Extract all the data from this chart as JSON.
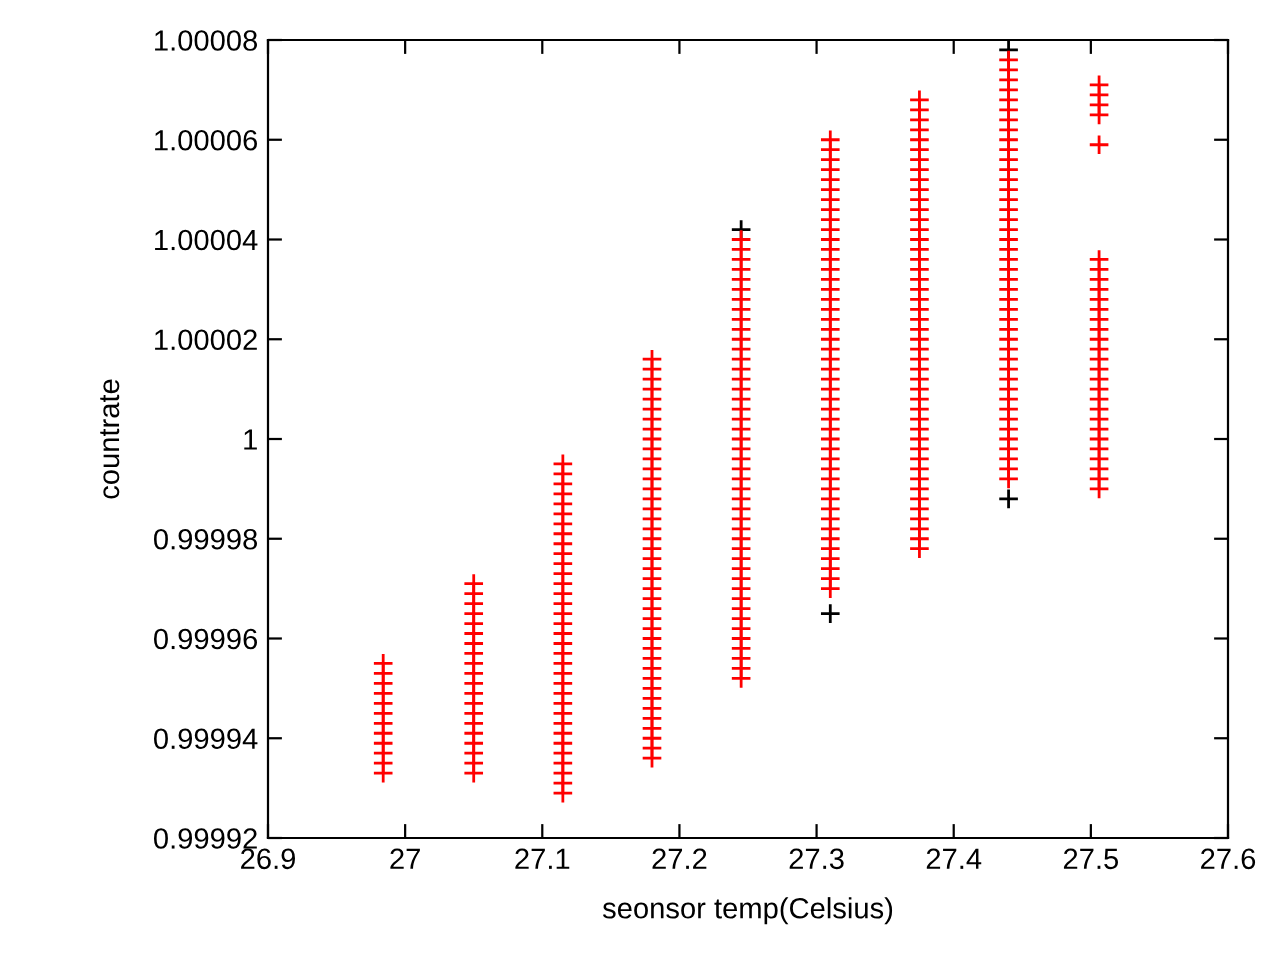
{
  "chart_data": {
    "type": "scatter",
    "xlabel": "seonsor temp(Celsius)",
    "ylabel": "countrate",
    "marker": "cross",
    "grid": false,
    "legend": false,
    "xlim": [
      26.9,
      27.6
    ],
    "xticks": [
      26.9,
      27,
      27.1,
      27.2,
      27.3,
      27.4,
      27.5,
      27.6
    ],
    "ylim": [
      0.99992,
      1.00008
    ],
    "yticks": [
      0.99992,
      0.99994,
      0.99996,
      0.99998,
      1,
      1.00002,
      1.00004,
      1.00006,
      1.00008
    ],
    "series": [
      {
        "color": "#000000",
        "x": [
          27.245,
          27.31,
          27.44,
          27.44
        ],
        "values": [
          1.000042,
          0.999965,
          1.000078,
          0.999988
        ]
      },
      {
        "color": "#ff0000",
        "x": [
          26.984,
          26.984,
          26.984,
          26.984,
          26.984,
          26.984,
          26.984,
          26.984,
          26.984,
          26.984,
          26.984,
          26.984
        ],
        "values": [
          0.999933,
          0.999935,
          0.999937,
          0.999939,
          0.999941,
          0.999943,
          0.999945,
          0.999947,
          0.999949,
          0.999951,
          0.999953,
          0.999955
        ]
      },
      {
        "color": "#ff0000",
        "x": [
          27.05,
          27.05,
          27.05,
          27.05,
          27.05,
          27.05,
          27.05,
          27.05,
          27.05,
          27.05,
          27.05,
          27.05,
          27.05,
          27.05,
          27.05,
          27.05,
          27.05,
          27.05,
          27.05,
          27.05
        ],
        "values": [
          0.999933,
          0.999935,
          0.999937,
          0.999939,
          0.999941,
          0.999943,
          0.999945,
          0.999947,
          0.999949,
          0.999951,
          0.999953,
          0.999955,
          0.999957,
          0.999959,
          0.999961,
          0.999963,
          0.999965,
          0.999967,
          0.999969,
          0.999971
        ]
      },
      {
        "color": "#ff0000",
        "x": [
          27.115,
          27.115,
          27.115,
          27.115,
          27.115,
          27.115,
          27.115,
          27.115,
          27.115,
          27.115,
          27.115,
          27.115,
          27.115,
          27.115,
          27.115,
          27.115,
          27.115,
          27.115,
          27.115,
          27.115,
          27.115,
          27.115,
          27.115,
          27.115,
          27.115,
          27.115,
          27.115,
          27.115,
          27.115,
          27.115,
          27.115,
          27.115,
          27.115,
          27.115
        ],
        "values": [
          0.999929,
          0.999931,
          0.999933,
          0.999935,
          0.999937,
          0.999939,
          0.999941,
          0.999943,
          0.999945,
          0.999947,
          0.999949,
          0.999951,
          0.999953,
          0.999955,
          0.999957,
          0.999959,
          0.999961,
          0.999963,
          0.999965,
          0.999967,
          0.999969,
          0.999971,
          0.999973,
          0.999975,
          0.999977,
          0.999979,
          0.999981,
          0.999983,
          0.999985,
          0.999987,
          0.999989,
          0.999991,
          0.999993,
          0.999995
        ]
      },
      {
        "color": "#ff0000",
        "x": [
          27.18,
          27.18,
          27.18,
          27.18,
          27.18,
          27.18,
          27.18,
          27.18,
          27.18,
          27.18,
          27.18,
          27.18,
          27.18,
          27.18,
          27.18,
          27.18,
          27.18,
          27.18,
          27.18,
          27.18,
          27.18,
          27.18,
          27.18,
          27.18,
          27.18,
          27.18,
          27.18,
          27.18,
          27.18,
          27.18,
          27.18,
          27.18,
          27.18,
          27.18,
          27.18,
          27.18,
          27.18,
          27.18,
          27.18,
          27.18,
          27.18
        ],
        "values": [
          0.999936,
          0.999938,
          0.99994,
          0.999942,
          0.999944,
          0.999946,
          0.999948,
          0.99995,
          0.999952,
          0.999954,
          0.999956,
          0.999958,
          0.99996,
          0.999962,
          0.999964,
          0.999966,
          0.999968,
          0.99997,
          0.999972,
          0.999974,
          0.999976,
          0.999978,
          0.99998,
          0.999982,
          0.999984,
          0.999986,
          0.999988,
          0.99999,
          0.999992,
          0.999994,
          0.999996,
          0.999998,
          1.0,
          1.000002,
          1.000004,
          1.000006,
          1.000008,
          1.00001,
          1.000012,
          1.000014,
          1.000016
        ]
      },
      {
        "color": "#ff0000",
        "x": [
          27.245,
          27.245,
          27.245,
          27.245,
          27.245,
          27.245,
          27.245,
          27.245,
          27.245,
          27.245,
          27.245,
          27.245,
          27.245,
          27.245,
          27.245,
          27.245,
          27.245,
          27.245,
          27.245,
          27.245,
          27.245,
          27.245,
          27.245,
          27.245,
          27.245,
          27.245,
          27.245,
          27.245,
          27.245,
          27.245,
          27.245,
          27.245,
          27.245,
          27.245,
          27.245,
          27.245,
          27.245,
          27.245,
          27.245,
          27.245,
          27.245,
          27.245,
          27.245,
          27.245,
          27.245
        ],
        "values": [
          0.999952,
          0.999954,
          0.999956,
          0.999958,
          0.99996,
          0.999962,
          0.999964,
          0.999966,
          0.999968,
          0.99997,
          0.999972,
          0.999974,
          0.999976,
          0.999978,
          0.99998,
          0.999982,
          0.999984,
          0.999986,
          0.999988,
          0.99999,
          0.999992,
          0.999994,
          0.999996,
          0.999998,
          1.0,
          1.000002,
          1.000004,
          1.000006,
          1.000008,
          1.00001,
          1.000012,
          1.000014,
          1.000016,
          1.000018,
          1.00002,
          1.000022,
          1.000024,
          1.000026,
          1.000028,
          1.00003,
          1.000032,
          1.000034,
          1.000036,
          1.000038,
          1.00004
        ]
      },
      {
        "color": "#ff0000",
        "x": [
          27.31,
          27.31,
          27.31,
          27.31,
          27.31,
          27.31,
          27.31,
          27.31,
          27.31,
          27.31,
          27.31,
          27.31,
          27.31,
          27.31,
          27.31,
          27.31,
          27.31,
          27.31,
          27.31,
          27.31,
          27.31,
          27.31,
          27.31,
          27.31,
          27.31,
          27.31,
          27.31,
          27.31,
          27.31,
          27.31,
          27.31,
          27.31,
          27.31,
          27.31,
          27.31,
          27.31,
          27.31,
          27.31,
          27.31,
          27.31,
          27.31,
          27.31,
          27.31,
          27.31,
          27.31,
          27.31
        ],
        "values": [
          0.99997,
          0.999972,
          0.999974,
          0.999976,
          0.999978,
          0.99998,
          0.999982,
          0.999984,
          0.999986,
          0.999988,
          0.99999,
          0.999992,
          0.999994,
          0.999996,
          0.999998,
          1.0,
          1.000002,
          1.000004,
          1.000006,
          1.000008,
          1.00001,
          1.000012,
          1.000014,
          1.000016,
          1.000018,
          1.00002,
          1.000022,
          1.000024,
          1.000026,
          1.000028,
          1.00003,
          1.000032,
          1.000034,
          1.000036,
          1.000038,
          1.00004,
          1.000042,
          1.000044,
          1.000046,
          1.000048,
          1.00005,
          1.000052,
          1.000054,
          1.000056,
          1.000058,
          1.00006
        ]
      },
      {
        "color": "#ff0000",
        "x": [
          27.375,
          27.375,
          27.375,
          27.375,
          27.375,
          27.375,
          27.375,
          27.375,
          27.375,
          27.375,
          27.375,
          27.375,
          27.375,
          27.375,
          27.375,
          27.375,
          27.375,
          27.375,
          27.375,
          27.375,
          27.375,
          27.375,
          27.375,
          27.375,
          27.375,
          27.375,
          27.375,
          27.375,
          27.375,
          27.375,
          27.375,
          27.375,
          27.375,
          27.375,
          27.375,
          27.375,
          27.375,
          27.375,
          27.375,
          27.375,
          27.375,
          27.375,
          27.375,
          27.375,
          27.375,
          27.375
        ],
        "values": [
          0.999978,
          0.99998,
          0.999982,
          0.999984,
          0.999986,
          0.999988,
          0.99999,
          0.999992,
          0.999994,
          0.999996,
          0.999998,
          1.0,
          1.000002,
          1.000004,
          1.000006,
          1.000008,
          1.00001,
          1.000012,
          1.000014,
          1.000016,
          1.000018,
          1.00002,
          1.000022,
          1.000024,
          1.000026,
          1.000028,
          1.00003,
          1.000032,
          1.000034,
          1.000036,
          1.000038,
          1.00004,
          1.000042,
          1.000044,
          1.000046,
          1.000048,
          1.00005,
          1.000052,
          1.000054,
          1.000056,
          1.000058,
          1.00006,
          1.000062,
          1.000064,
          1.000066,
          1.000068
        ]
      },
      {
        "color": "#ff0000",
        "x": [
          27.44,
          27.44,
          27.44,
          27.44,
          27.44,
          27.44,
          27.44,
          27.44,
          27.44,
          27.44,
          27.44,
          27.44,
          27.44,
          27.44,
          27.44,
          27.44,
          27.44,
          27.44,
          27.44,
          27.44,
          27.44,
          27.44,
          27.44,
          27.44,
          27.44,
          27.44,
          27.44,
          27.44,
          27.44,
          27.44,
          27.44,
          27.44,
          27.44,
          27.44,
          27.44,
          27.44,
          27.44,
          27.44,
          27.44,
          27.44,
          27.44,
          27.44,
          27.44
        ],
        "values": [
          0.999992,
          0.999994,
          0.999996,
          0.999998,
          1.0,
          1.000002,
          1.000004,
          1.000006,
          1.000008,
          1.00001,
          1.000012,
          1.000014,
          1.000016,
          1.000018,
          1.00002,
          1.000022,
          1.000024,
          1.000026,
          1.000028,
          1.00003,
          1.000032,
          1.000034,
          1.000036,
          1.000038,
          1.00004,
          1.000042,
          1.000044,
          1.000046,
          1.000048,
          1.00005,
          1.000052,
          1.000054,
          1.000056,
          1.000058,
          1.00006,
          1.000062,
          1.000064,
          1.000066,
          1.000068,
          1.00007,
          1.000072,
          1.000074,
          1.000076
        ]
      },
      {
        "color": "#ff0000",
        "x": [
          27.506,
          27.506,
          27.506,
          27.506,
          27.506,
          27.506,
          27.506,
          27.506,
          27.506,
          27.506,
          27.506,
          27.506,
          27.506,
          27.506,
          27.506,
          27.506,
          27.506,
          27.506,
          27.506,
          27.506,
          27.506,
          27.506,
          27.506,
          27.506,
          27.506,
          27.506,
          27.506,
          27.506,
          27.506
        ],
        "values": [
          0.99999,
          0.999992,
          0.999994,
          0.999996,
          0.999998,
          1.0,
          1.000002,
          1.000004,
          1.000006,
          1.000008,
          1.00001,
          1.000012,
          1.000014,
          1.000016,
          1.000018,
          1.00002,
          1.000022,
          1.000024,
          1.000026,
          1.000028,
          1.00003,
          1.000032,
          1.000034,
          1.000036,
          1.000059,
          1.000065,
          1.000067,
          1.000069,
          1.000071
        ]
      }
    ]
  }
}
